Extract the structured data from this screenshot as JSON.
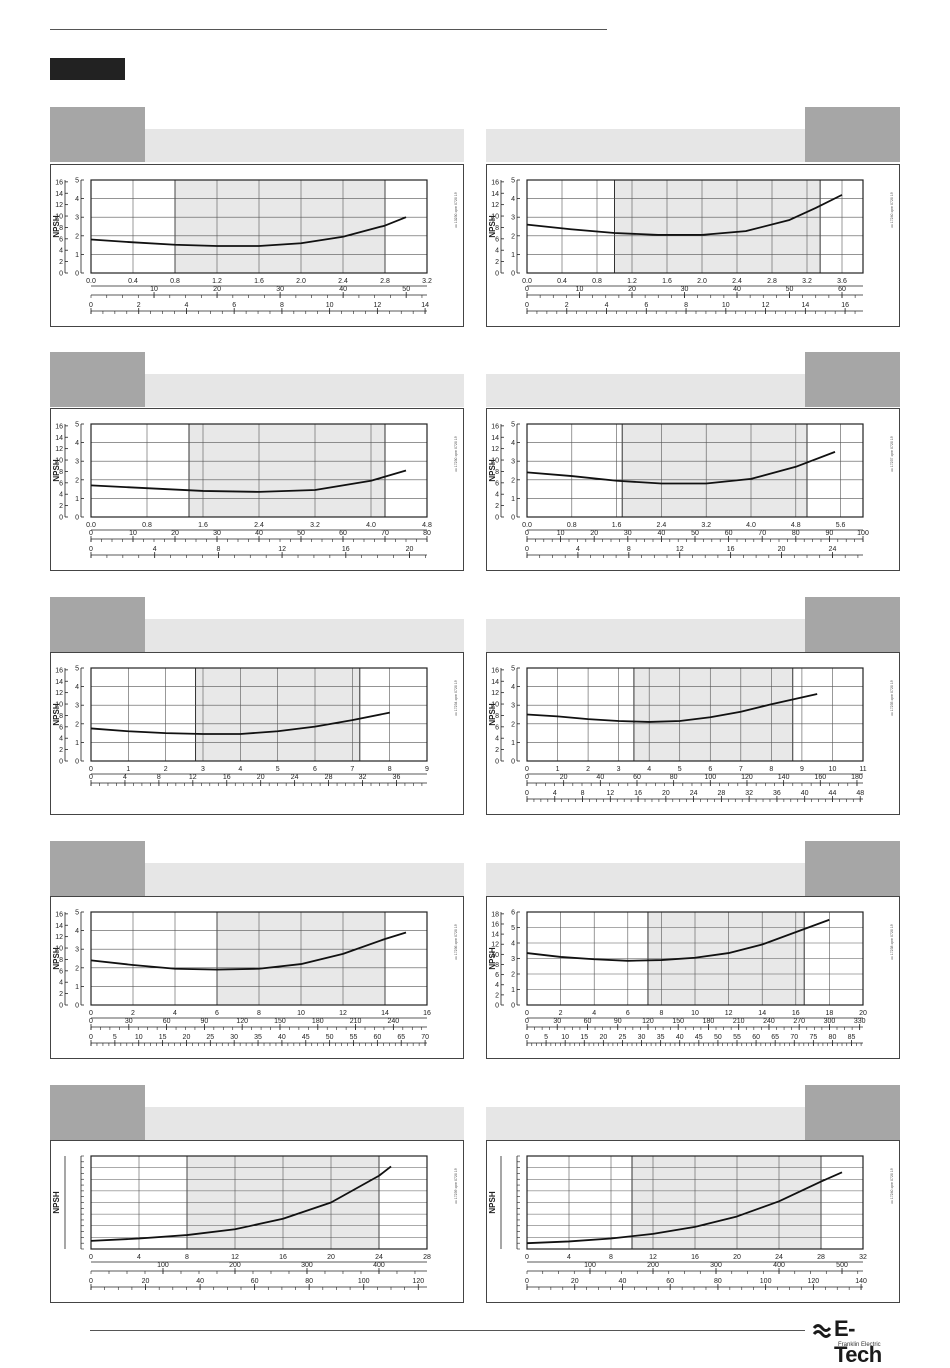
{
  "brand": {
    "name": "E-Tech",
    "sub": "Franklin Electric"
  },
  "chart_data": [
    {
      "type": "line",
      "title": "",
      "ylabel": "NPSH",
      "y_m_ticks": [
        "0",
        "1",
        "2",
        "3",
        "4",
        "5"
      ],
      "y_ft_ticks": [
        "0",
        "2",
        "4",
        "6",
        "8",
        "10",
        "12",
        "14",
        "16"
      ],
      "x_main_ticks": [
        "0.0",
        "0.4",
        "0.8",
        "1.2",
        "1.6",
        "2.0",
        "2.4",
        "2.8",
        "3.2"
      ],
      "x_main_range": [
        0,
        3.2
      ],
      "x_axis2_ticks": [
        "10",
        "20",
        "30",
        "40",
        "50"
      ],
      "x_axis2_range": [
        0,
        53.3
      ],
      "x_axis3_ticks": [
        "0",
        "2",
        "4",
        "6",
        "8",
        "10",
        "12",
        "14"
      ],
      "x_axis3_range": [
        0,
        14.08
      ],
      "ylim": [
        0,
        5
      ],
      "band": [
        0.8,
        2.8
      ],
      "curve": {
        "x": [
          0.0,
          0.4,
          0.8,
          1.2,
          1.6,
          2.0,
          2.4,
          2.8,
          3.0
        ],
        "y": [
          1.8,
          1.65,
          1.52,
          1.45,
          1.45,
          1.6,
          1.95,
          2.55,
          3.0
        ]
      },
      "code": "xx 13230 xpm 0720 19"
    },
    {
      "type": "line",
      "title": "",
      "ylabel": "NPSH",
      "y_m_ticks": [
        "0",
        "1",
        "2",
        "3",
        "4",
        "5"
      ],
      "y_ft_ticks": [
        "0",
        "2",
        "4",
        "6",
        "8",
        "10",
        "12",
        "14",
        "16"
      ],
      "x_main_ticks": [
        "0.0",
        "0.4",
        "0.8",
        "1.2",
        "1.6",
        "2.0",
        "2.4",
        "2.8",
        "3.2",
        "3.6"
      ],
      "x_main_range": [
        0,
        3.84
      ],
      "x_axis2_ticks": [
        "0",
        "10",
        "20",
        "30",
        "40",
        "50",
        "60"
      ],
      "x_axis2_range": [
        0,
        64
      ],
      "x_axis3_ticks": [
        "0",
        "2",
        "4",
        "6",
        "8",
        "10",
        "12",
        "14",
        "16"
      ],
      "x_axis3_range": [
        0,
        16.9
      ],
      "ylim": [
        0,
        5
      ],
      "band": [
        1.0,
        3.35
      ],
      "curve": {
        "x": [
          0.0,
          0.5,
          1.0,
          1.5,
          2.0,
          2.5,
          3.0,
          3.3,
          3.6
        ],
        "y": [
          2.6,
          2.35,
          2.15,
          2.05,
          2.05,
          2.25,
          2.85,
          3.5,
          4.2
        ]
      },
      "code": "xx 17240 xpm 0720 19"
    },
    {
      "type": "line",
      "title": "",
      "ylabel": "NPSH",
      "y_m_ticks": [
        "0",
        "1",
        "2",
        "3",
        "4",
        "5"
      ],
      "y_ft_ticks": [
        "0",
        "2",
        "4",
        "6",
        "8",
        "10",
        "12",
        "14",
        "16"
      ],
      "x_main_ticks": [
        "0.0",
        "0.8",
        "1.6",
        "2.4",
        "3.2",
        "4.0",
        "4.8"
      ],
      "x_main_range": [
        0,
        4.8
      ],
      "x_axis2_ticks": [
        "0",
        "10",
        "20",
        "30",
        "40",
        "50",
        "60",
        "70",
        "80"
      ],
      "x_axis2_range": [
        0,
        80
      ],
      "x_axis3_ticks": [
        "0",
        "4",
        "8",
        "12",
        "16",
        "20"
      ],
      "x_axis3_range": [
        0,
        21.1
      ],
      "ylim": [
        0,
        5
      ],
      "band": [
        1.4,
        4.2
      ],
      "curve": {
        "x": [
          0.0,
          0.8,
          1.6,
          2.4,
          3.2,
          4.0,
          4.5
        ],
        "y": [
          1.7,
          1.55,
          1.4,
          1.35,
          1.45,
          1.95,
          2.5
        ]
      },
      "code": "xx 17230 xpm 0720 19"
    },
    {
      "type": "line",
      "title": "",
      "ylabel": "NPSH",
      "y_m_ticks": [
        "0",
        "1",
        "2",
        "3",
        "4",
        "5"
      ],
      "y_ft_ticks": [
        "0",
        "2",
        "4",
        "6",
        "8",
        "10",
        "12",
        "14",
        "16"
      ],
      "x_main_ticks": [
        "0.0",
        "0.8",
        "1.6",
        "2.4",
        "3.2",
        "4.0",
        "4.8",
        "5.6"
      ],
      "x_main_range": [
        0,
        6.0
      ],
      "x_axis2_ticks": [
        "0",
        "10",
        "20",
        "30",
        "40",
        "50",
        "60",
        "70",
        "80",
        "90",
        "100"
      ],
      "x_axis2_range": [
        0,
        100
      ],
      "x_axis3_ticks": [
        "0",
        "4",
        "8",
        "12",
        "16",
        "20",
        "24"
      ],
      "x_axis3_range": [
        0,
        26.4
      ],
      "ylim": [
        0,
        5
      ],
      "band": [
        1.7,
        5.0
      ],
      "curve": {
        "x": [
          0.0,
          0.8,
          1.6,
          2.4,
          3.2,
          4.0,
          4.8,
          5.5
        ],
        "y": [
          2.4,
          2.2,
          1.95,
          1.8,
          1.8,
          2.05,
          2.7,
          3.5
        ]
      },
      "code": "xx 17237 xpm 0720 19"
    },
    {
      "type": "line",
      "title": "",
      "ylabel": "NPSH",
      "y_m_ticks": [
        "0",
        "1",
        "2",
        "3",
        "4",
        "5"
      ],
      "y_ft_ticks": [
        "0",
        "2",
        "4",
        "6",
        "8",
        "10",
        "12",
        "14",
        "16"
      ],
      "x_main_ticks": [
        "0",
        "1",
        "2",
        "3",
        "4",
        "5",
        "6",
        "7",
        "8",
        "9"
      ],
      "x_main_range": [
        0,
        9
      ],
      "x_axis2_ticks": [
        "0",
        "4",
        "8",
        "12",
        "16",
        "20",
        "24",
        "28",
        "32",
        "36"
      ],
      "x_axis2_range": [
        0,
        39.6
      ],
      "x_axis3_ticks": [],
      "x_axis3_range": [
        0,
        1
      ],
      "ylim": [
        0,
        5
      ],
      "band": [
        2.8,
        7.2
      ],
      "curve": {
        "x": [
          0,
          1,
          2,
          3,
          4,
          5,
          6,
          7,
          8
        ],
        "y": [
          1.75,
          1.6,
          1.5,
          1.45,
          1.45,
          1.6,
          1.85,
          2.2,
          2.6
        ]
      },
      "code": "xx 17234 xpm 0720 19"
    },
    {
      "type": "line",
      "title": "",
      "ylabel": "NPSH",
      "y_m_ticks": [
        "0",
        "1",
        "2",
        "3",
        "4",
        "5"
      ],
      "y_ft_ticks": [
        "0",
        "2",
        "4",
        "6",
        "8",
        "10",
        "12",
        "14",
        "16"
      ],
      "x_main_ticks": [
        "0",
        "1",
        "2",
        "3",
        "4",
        "5",
        "6",
        "7",
        "8",
        "9",
        "10",
        "11"
      ],
      "x_main_range": [
        0,
        11
      ],
      "x_axis2_ticks": [
        "0",
        "20",
        "40",
        "60",
        "80",
        "100",
        "120",
        "140",
        "160",
        "180"
      ],
      "x_axis2_range": [
        0,
        183.3
      ],
      "x_axis3_ticks": [
        "0",
        "4",
        "8",
        "12",
        "16",
        "20",
        "24",
        "28",
        "32",
        "36",
        "40",
        "44",
        "48"
      ],
      "x_axis3_range": [
        0,
        48.4
      ],
      "ylim": [
        0,
        5
      ],
      "band": [
        3.5,
        8.7
      ],
      "curve": {
        "x": [
          0,
          1,
          2,
          3,
          4,
          5,
          6,
          7,
          8,
          9.5
        ],
        "y": [
          2.5,
          2.4,
          2.25,
          2.15,
          2.1,
          2.15,
          2.35,
          2.65,
          3.05,
          3.6
        ]
      },
      "code": "xx 17235 xpm 0720 19"
    },
    {
      "type": "line",
      "title": "",
      "ylabel": "NPSH",
      "y_m_ticks": [
        "0",
        "1",
        "2",
        "3",
        "4",
        "5"
      ],
      "y_ft_ticks": [
        "0",
        "2",
        "4",
        "6",
        "8",
        "10",
        "12",
        "14",
        "16"
      ],
      "x_main_ticks": [
        "0",
        "2",
        "4",
        "6",
        "8",
        "10",
        "12",
        "14",
        "16"
      ],
      "x_main_range": [
        0,
        16
      ],
      "x_axis2_ticks": [
        "0",
        "30",
        "60",
        "90",
        "120",
        "150",
        "180",
        "210",
        "240"
      ],
      "x_axis2_range": [
        0,
        266.7
      ],
      "x_axis3_ticks": [
        "0",
        "5",
        "10",
        "15",
        "20",
        "25",
        "30",
        "35",
        "40",
        "45",
        "50",
        "55",
        "60",
        "65",
        "70"
      ],
      "x_axis3_range": [
        0,
        70.4
      ],
      "ylim": [
        0,
        5
      ],
      "band": [
        6,
        14
      ],
      "curve": {
        "x": [
          0,
          2,
          4,
          6,
          8,
          10,
          12,
          14,
          15
        ],
        "y": [
          2.4,
          2.15,
          1.95,
          1.9,
          1.95,
          2.2,
          2.75,
          3.55,
          3.9
        ]
      },
      "code": "xx 17236 xpm 0720 19"
    },
    {
      "type": "line",
      "title": "",
      "ylabel": "NPSH",
      "y_m_ticks": [
        "0",
        "1",
        "2",
        "3",
        "4",
        "5",
        "6"
      ],
      "y_ft_ticks": [
        "0",
        "2",
        "4",
        "6",
        "8",
        "10",
        "12",
        "14",
        "16",
        "18"
      ],
      "x_main_ticks": [
        "0",
        "2",
        "4",
        "6",
        "8",
        "10",
        "12",
        "14",
        "16",
        "18",
        "20"
      ],
      "x_main_range": [
        0,
        20
      ],
      "x_axis2_ticks": [
        "0",
        "30",
        "60",
        "90",
        "120",
        "150",
        "180",
        "210",
        "240",
        "270",
        "300",
        "330"
      ],
      "x_axis2_range": [
        0,
        333.3
      ],
      "x_axis3_ticks": [
        "0",
        "5",
        "10",
        "15",
        "20",
        "25",
        "30",
        "35",
        "40",
        "45",
        "50",
        "55",
        "60",
        "65",
        "70",
        "75",
        "80",
        "85"
      ],
      "x_axis3_range": [
        0,
        88
      ],
      "ylim": [
        0,
        6
      ],
      "band": [
        7.2,
        16.5
      ],
      "curve": {
        "x": [
          0,
          2,
          4,
          6,
          8,
          10,
          12,
          14,
          16,
          18
        ],
        "y": [
          3.35,
          3.1,
          2.95,
          2.85,
          2.9,
          3.05,
          3.35,
          3.9,
          4.7,
          5.5
        ]
      },
      "code": "xx 17238 xpm 0720 19"
    },
    {
      "type": "line",
      "title": "",
      "ylabel": "NPSH",
      "y_m_ticks": [],
      "y_ft_ticks": [],
      "x_main_ticks": [
        "0",
        "4",
        "8",
        "12",
        "16",
        "20",
        "24",
        "28"
      ],
      "x_main_range": [
        0,
        28
      ],
      "x_axis2_ticks": [
        "100",
        "200",
        "300",
        "400"
      ],
      "x_axis2_range": [
        0,
        466.7
      ],
      "x_axis3_ticks": [
        "0",
        "20",
        "40",
        "60",
        "80",
        "100",
        "120"
      ],
      "x_axis3_range": [
        0,
        123.2
      ],
      "ylim": [
        0,
        8
      ],
      "band": [
        8,
        24
      ],
      "curve": {
        "x": [
          0,
          4,
          8,
          12,
          16,
          20,
          24,
          25
        ],
        "y": [
          0.7,
          0.9,
          1.2,
          1.7,
          2.6,
          4.0,
          6.3,
          7.1
        ]
      },
      "code": "xx 17239 xpm 0720 19"
    },
    {
      "type": "line",
      "title": "",
      "ylabel": "NPSH",
      "y_m_ticks": [],
      "y_ft_ticks": [],
      "x_main_ticks": [
        "0",
        "4",
        "8",
        "12",
        "16",
        "20",
        "24",
        "28",
        "32"
      ],
      "x_main_range": [
        0,
        32
      ],
      "x_axis2_ticks": [
        "100",
        "200",
        "300",
        "400",
        "500"
      ],
      "x_axis2_range": [
        0,
        533.3
      ],
      "x_axis3_ticks": [
        "0",
        "20",
        "40",
        "60",
        "80",
        "100",
        "120",
        "140"
      ],
      "x_axis3_range": [
        0,
        140.8
      ],
      "ylim": [
        0,
        8
      ],
      "band": [
        10,
        28
      ],
      "curve": {
        "x": [
          0,
          4,
          8,
          12,
          16,
          20,
          24,
          28,
          30
        ],
        "y": [
          0.5,
          0.65,
          0.9,
          1.3,
          1.9,
          2.8,
          4.1,
          5.8,
          6.6
        ]
      },
      "code": "xx 17240 xpm 0720 19"
    }
  ]
}
